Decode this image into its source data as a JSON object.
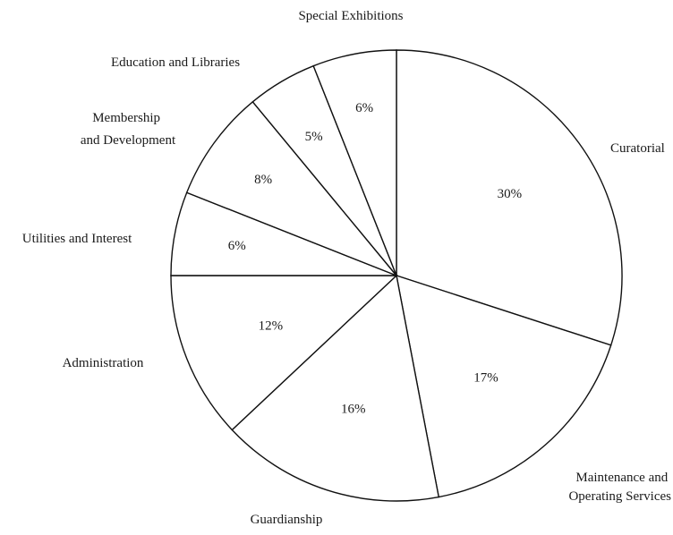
{
  "chart_data": {
    "type": "pie",
    "slices": [
      {
        "label": "Curatorial",
        "value": 30,
        "value_label": "30%"
      },
      {
        "label": "Maintenance and Operating Services",
        "value": 17,
        "value_label": "17%"
      },
      {
        "label": "Guardianship",
        "value": 16,
        "value_label": "16%"
      },
      {
        "label": "Administration",
        "value": 12,
        "value_label": "12%"
      },
      {
        "label": "Utilities and Interest",
        "value": 6,
        "value_label": "6%"
      },
      {
        "label": "Membership and Development",
        "value": 8,
        "value_label": "8%"
      },
      {
        "label": "Education and Libraries",
        "value": 5,
        "value_label": "5%"
      },
      {
        "label": "Special Exhibitions",
        "value": 6,
        "value_label": "6%"
      }
    ],
    "start": "12 o'clock",
    "direction": "clockwise",
    "fill_color": "#ffffff",
    "stroke_color": "#111111"
  }
}
